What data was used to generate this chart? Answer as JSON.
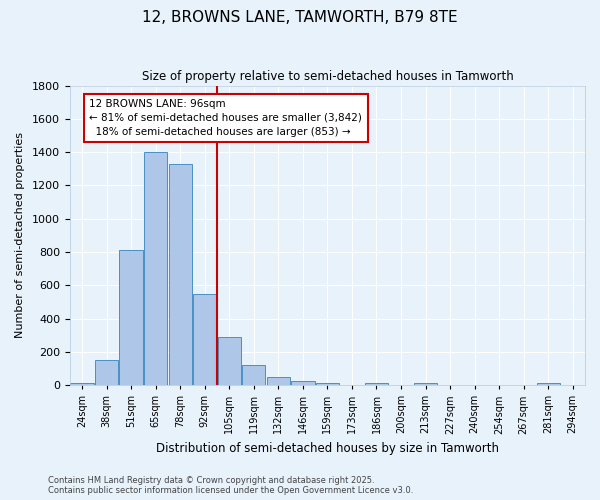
{
  "title1": "12, BROWNS LANE, TAMWORTH, B79 8TE",
  "title2": "Size of property relative to semi-detached houses in Tamworth",
  "xlabel": "Distribution of semi-detached houses by size in Tamworth",
  "ylabel": "Number of semi-detached properties",
  "categories": [
    "24sqm",
    "38sqm",
    "51sqm",
    "65sqm",
    "78sqm",
    "92sqm",
    "105sqm",
    "119sqm",
    "132sqm",
    "146sqm",
    "159sqm",
    "173sqm",
    "186sqm",
    "200sqm",
    "213sqm",
    "227sqm",
    "240sqm",
    "254sqm",
    "267sqm",
    "281sqm",
    "294sqm"
  ],
  "values": [
    10,
    150,
    810,
    1400,
    1330,
    550,
    290,
    120,
    50,
    25,
    15,
    0,
    10,
    0,
    10,
    0,
    0,
    0,
    0,
    10,
    0
  ],
  "bar_color": "#aec6e8",
  "bar_edge_color": "#4a90c4",
  "background_color": "#e8f2fb",
  "grid_color": "#ffffff",
  "property_line_x": 5.5,
  "property_label": "12 BROWNS LANE: 96sqm",
  "annotation_smaller": "← 81% of semi-detached houses are smaller (3,842)",
  "annotation_larger": "18% of semi-detached houses are larger (853) →",
  "annotation_box_color": "#ffffff",
  "annotation_box_edge": "#cc0000",
  "red_line_color": "#cc0000",
  "ylim": [
    0,
    1800
  ],
  "yticks": [
    0,
    200,
    400,
    600,
    800,
    1000,
    1200,
    1400,
    1600,
    1800
  ],
  "footer1": "Contains HM Land Registry data © Crown copyright and database right 2025.",
  "footer2": "Contains public sector information licensed under the Open Government Licence v3.0."
}
